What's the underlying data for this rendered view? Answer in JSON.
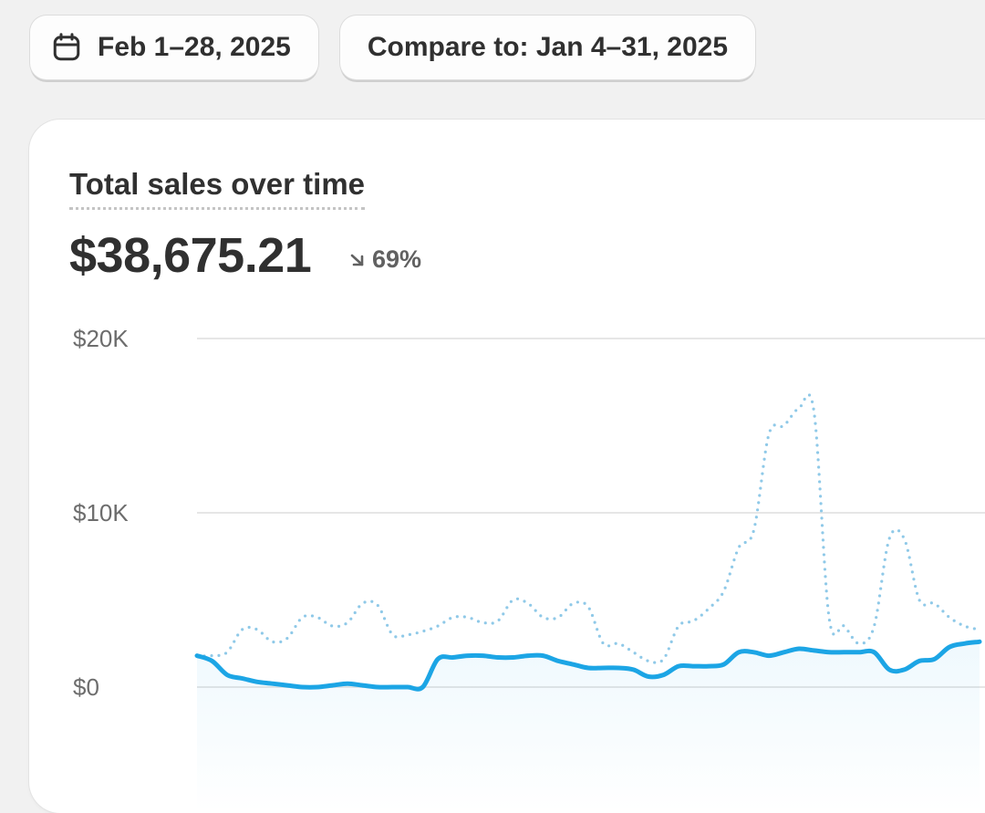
{
  "toolbar": {
    "date_range": "Feb 1–28, 2025",
    "compare": "Compare to: Jan 4–31, 2025",
    "date_icon": "calendar-icon"
  },
  "card": {
    "title": "Total sales over time",
    "total": "$38,675.21",
    "delta": "69%",
    "delta_icon": "arrow-down-right-icon"
  },
  "colors": {
    "current": "#1ca5e5",
    "previous": "#8fc9e8",
    "grid": "#e6e6e6"
  },
  "chart_data": {
    "type": "line",
    "title": "Total sales over time",
    "ylim": [
      0,
      20000
    ],
    "yticks": [
      {
        "value": 0,
        "label": "$0"
      },
      {
        "value": 10000,
        "label": "$10K"
      },
      {
        "value": 20000,
        "label": "$20K"
      }
    ],
    "grid": true,
    "series": [
      {
        "values": [
          1800,
          1500,
          700,
          500,
          300,
          200,
          100,
          0,
          0,
          100,
          200,
          100,
          0,
          0,
          0,
          0,
          1600,
          1700,
          1800,
          1800,
          1700,
          1700,
          1800,
          1800,
          1500,
          1300,
          1100,
          1100,
          1100,
          1000,
          600,
          700,
          1200,
          1200,
          1200,
          1300,
          2000,
          2000,
          1800,
          2000,
          2200,
          2100,
          2000,
          2000,
          2000,
          2000,
          1000,
          1000,
          1500,
          1600,
          2300,
          2500,
          2600
        ]
      },
      {
        "style": "dotted",
        "values": [
          1800,
          1800,
          2000,
          3300,
          3300,
          2600,
          2800,
          4000,
          4000,
          3500,
          3700,
          4800,
          4700,
          3000,
          3000,
          3200,
          3500,
          4000,
          4000,
          3700,
          3800,
          5000,
          4800,
          4000,
          4000,
          4800,
          4600,
          2500,
          2500,
          2000,
          1500,
          1600,
          3500,
          3800,
          4500,
          5500,
          8000,
          9000,
          14500,
          15000,
          16000,
          15800,
          4000,
          3500,
          2500,
          3500,
          8500,
          8500,
          5000,
          4800,
          4000,
          3500,
          3300
        ]
      }
    ]
  }
}
